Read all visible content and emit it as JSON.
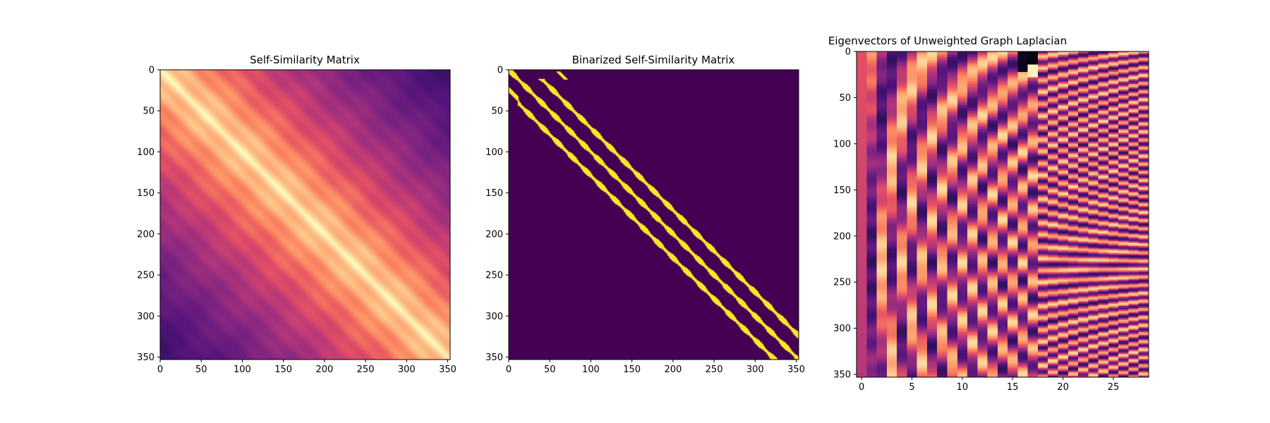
{
  "figure": {
    "background": "#ffffff"
  },
  "chart_data": [
    {
      "type": "heatmap",
      "title": "Self-Similarity Matrix",
      "colormap": "magma",
      "matrix_size": [
        353,
        353
      ],
      "description_of_values": "Cosine-like self-similarity: maximum on main diagonal, parallel bright stripes every ~29 samples, decaying toward top-right and bottom-left corners (darkest).",
      "stripe_period": 29,
      "xlim": [
        0,
        353
      ],
      "ylim": [
        353,
        0
      ],
      "xticks": [
        "0",
        "50",
        "100",
        "150",
        "200",
        "250",
        "300",
        "350"
      ],
      "yticks": [
        "0",
        "50",
        "100",
        "150",
        "200",
        "250",
        "300",
        "350"
      ],
      "grid": false
    },
    {
      "type": "heatmap",
      "title": "Binarized Self-Similarity Matrix",
      "colormap": "viridis",
      "colors": {
        "low": "#440154",
        "high": "#fde725"
      },
      "matrix_size": [
        353,
        353
      ],
      "bands": [
        {
          "offset": 0,
          "description": "main diagonal"
        },
        {
          "offset": 29,
          "description": "upper parallel band"
        },
        {
          "offset": -29,
          "description": "lower parallel band"
        },
        {
          "offset": 58,
          "description": "short segment near origin"
        }
      ],
      "xlim": [
        0,
        353
      ],
      "ylim": [
        353,
        0
      ],
      "xticks": [
        "0",
        "50",
        "100",
        "150",
        "200",
        "250",
        "300",
        "350"
      ],
      "yticks": [
        "0",
        "50",
        "100",
        "150",
        "200",
        "250",
        "300",
        "350"
      ],
      "grid": false
    },
    {
      "type": "heatmap",
      "title": "Eigenvectors of Unweighted Graph Laplacian",
      "colormap": "magma",
      "matrix_size": [
        353,
        29
      ],
      "description_of_values": "Columns are Laplacian eigenvectors; oscillation frequency increases with column index. Column 17 has a strong localized feature near rows 0-30.",
      "xlim": [
        -0.5,
        28.5
      ],
      "ylim": [
        353,
        0
      ],
      "xticks": [
        "0",
        "5",
        "10",
        "15",
        "20",
        "25"
      ],
      "yticks": [
        "0",
        "50",
        "100",
        "150",
        "200",
        "250",
        "300",
        "350"
      ],
      "grid": false
    }
  ]
}
